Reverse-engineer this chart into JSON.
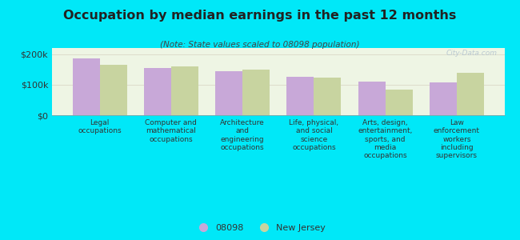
{
  "title": "Occupation by median earnings in the past 12 months",
  "subtitle": "(Note: State values scaled to 08098 population)",
  "categories": [
    "Legal\noccupations",
    "Computer and\nmathematical\noccupations",
    "Architecture\nand\nengineering\noccupations",
    "Life, physical,\nand social\nscience\noccupations",
    "Arts, design,\nentertainment,\nsports, and\nmedia\noccupations",
    "Law\nenforcement\nworkers\nincluding\nsupervisors"
  ],
  "values_08098": [
    185000,
    155000,
    145000,
    125000,
    110000,
    108000
  ],
  "values_nj": [
    165000,
    160000,
    148000,
    123000,
    85000,
    138000
  ],
  "bar_color_08098": "#c8a8d8",
  "bar_color_nj": "#c8d4a0",
  "background_outer": "#00e8f8",
  "background_inner": "#eef5e4",
  "yticks": [
    0,
    100000,
    200000
  ],
  "ytick_labels": [
    "$0",
    "$100k",
    "$200k"
  ],
  "ylim": [
    0,
    220000
  ],
  "legend_label_08098": "08098",
  "legend_label_nj": "New Jersey",
  "watermark": "City-Data.com",
  "title_fontsize": 11.5,
  "subtitle_fontsize": 7.5,
  "axis_label_fontsize": 6.5,
  "legend_fontsize": 8,
  "ytick_fontsize": 8,
  "bar_width": 0.38
}
